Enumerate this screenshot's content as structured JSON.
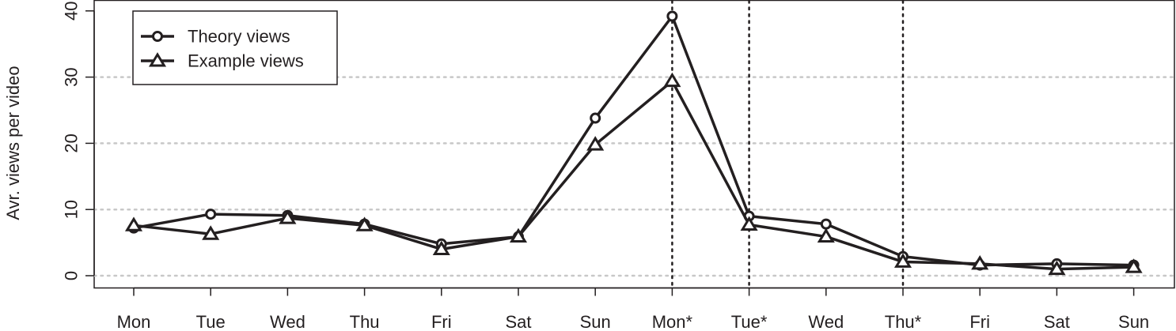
{
  "chart_data": {
    "type": "line",
    "title": "",
    "xlabel": "",
    "ylabel": "Avr. views per video",
    "ylim": [
      0,
      40
    ],
    "yticks": [
      0,
      10,
      20,
      30,
      40
    ],
    "categories": [
      "Mon",
      "Tue",
      "Wed",
      "Thu",
      "Fri",
      "Sat",
      "Sun",
      "Mon*",
      "Tue*",
      "Wed",
      "Thu*",
      "Fri",
      "Sat",
      "Sun"
    ],
    "grid": true,
    "legend_position": "top-left",
    "vertical_reference_lines_at": [
      "Mon*",
      "Tue*",
      "Thu*"
    ],
    "series": [
      {
        "name": "Theory views",
        "marker": "circle",
        "values": [
          7.2,
          9.3,
          9.1,
          7.8,
          4.8,
          5.9,
          23.8,
          39.2,
          9.0,
          7.8,
          2.9,
          1.6,
          1.8,
          1.6
        ]
      },
      {
        "name": "Example views",
        "marker": "triangle",
        "values": [
          7.6,
          6.3,
          8.7,
          7.6,
          4.0,
          5.9,
          19.8,
          29.4,
          7.7,
          5.9,
          2.1,
          1.8,
          1.0,
          1.3
        ]
      }
    ],
    "line_color": "#231f20",
    "grid_color": "#c8c8c8"
  }
}
